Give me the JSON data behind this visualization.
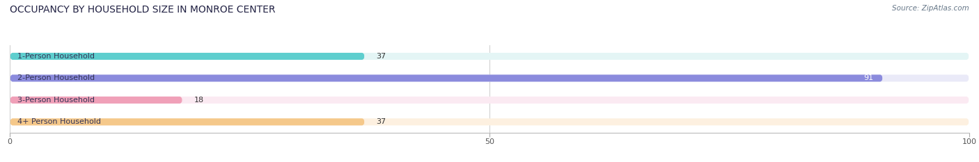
{
  "title": "OCCUPANCY BY HOUSEHOLD SIZE IN MONROE CENTER",
  "source": "Source: ZipAtlas.com",
  "categories": [
    "1-Person Household",
    "2-Person Household",
    "3-Person Household",
    "4+ Person Household"
  ],
  "values": [
    37,
    91,
    18,
    37
  ],
  "bar_colors": [
    "#5ecece",
    "#8b8bdd",
    "#f0a0b8",
    "#f5c88a"
  ],
  "bg_colors": [
    "#e4f5f5",
    "#eaeaf8",
    "#fbeaf2",
    "#fdf0e0"
  ],
  "xlim": [
    0,
    100
  ],
  "xticks": [
    0,
    50,
    100
  ],
  "title_fontsize": 10,
  "label_fontsize": 8,
  "value_fontsize": 8,
  "source_fontsize": 7.5
}
